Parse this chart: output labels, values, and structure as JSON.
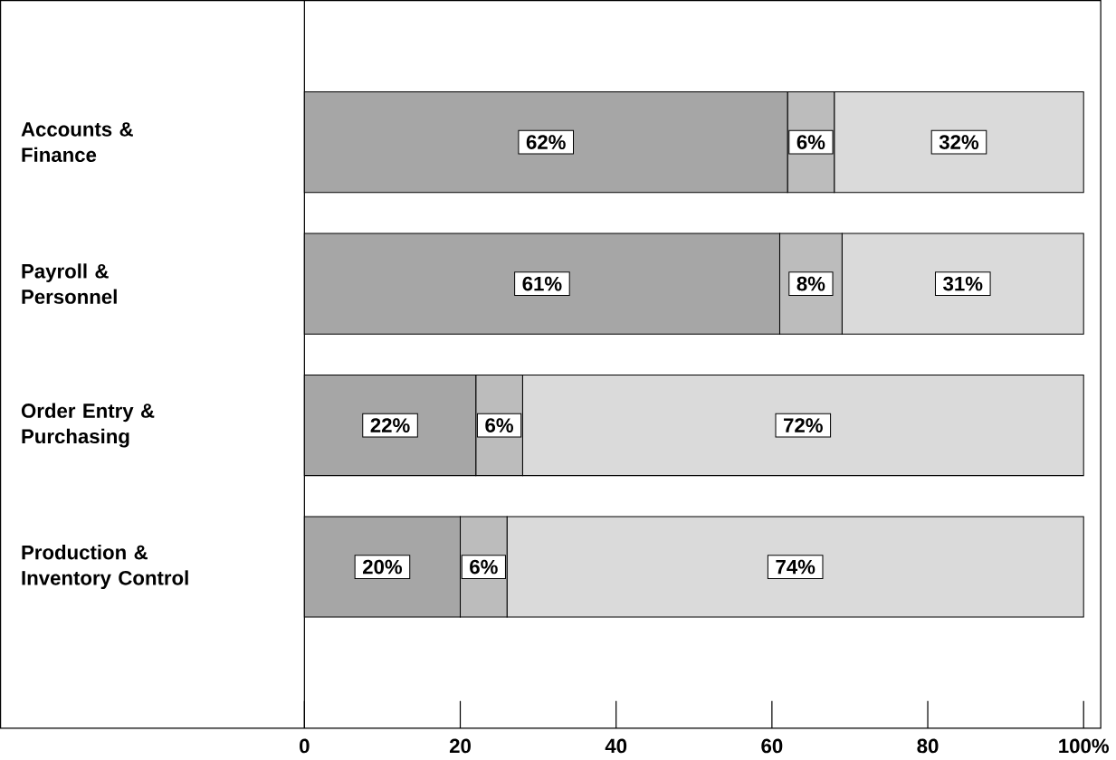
{
  "chart_data": {
    "type": "bar",
    "orientation": "horizontal",
    "stacked": true,
    "categories": [
      "Accounts & Finance",
      "Payroll & Personnel",
      "Order Entry & Purchasing",
      "Production & Inventory Control"
    ],
    "series": [
      {
        "color": "#a6a6a6",
        "values": [
          62,
          61,
          22,
          20
        ],
        "value_labels": [
          "62%",
          "61%",
          "22%",
          "20%"
        ]
      },
      {
        "color": "#bcbcbc",
        "values": [
          6,
          8,
          6,
          6
        ],
        "value_labels": [
          "6%",
          "8%",
          "6%",
          "6%"
        ]
      },
      {
        "color": "#dadada",
        "values": [
          32,
          31,
          72,
          74
        ],
        "value_labels": [
          "32%",
          "31%",
          "72%",
          "74%"
        ]
      }
    ],
    "xlim": [
      0,
      100
    ],
    "xticks": [
      0,
      20,
      40,
      60,
      80,
      {
        "value": 100,
        "label": "100%"
      }
    ],
    "grid": false
  }
}
